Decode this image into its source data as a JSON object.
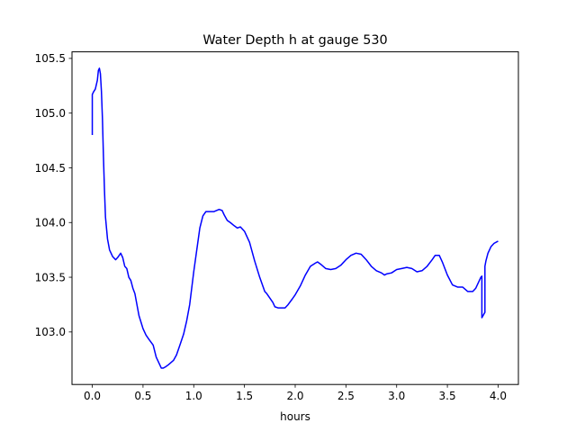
{
  "chart_data": {
    "type": "line",
    "title": "Water Depth h at gauge 530",
    "xlabel": "hours",
    "ylabel": "",
    "xlim": [
      -0.2,
      4.2
    ],
    "ylim": [
      102.52,
      105.56
    ],
    "xticks": [
      0.0,
      0.5,
      1.0,
      1.5,
      2.0,
      2.5,
      3.0,
      3.5,
      4.0
    ],
    "xtick_labels": [
      "0.0",
      "0.5",
      "1.0",
      "1.5",
      "2.0",
      "2.5",
      "3.0",
      "3.5",
      "4.0"
    ],
    "yticks": [
      103.0,
      103.5,
      104.0,
      104.5,
      105.0,
      105.5
    ],
    "ytick_labels": [
      "103.0",
      "103.5",
      "104.0",
      "104.5",
      "105.0",
      "105.5"
    ],
    "grid": false,
    "legend": "none",
    "series": [
      {
        "color": "#0000ff",
        "x": [
          0.0,
          0.0,
          0.01,
          0.03,
          0.05,
          0.06,
          0.07,
          0.08,
          0.09,
          0.1,
          0.11,
          0.12,
          0.13,
          0.15,
          0.17,
          0.2,
          0.23,
          0.25,
          0.28,
          0.3,
          0.32,
          0.34,
          0.36,
          0.38,
          0.4,
          0.42,
          0.44,
          0.46,
          0.48,
          0.5,
          0.53,
          0.56,
          0.6,
          0.63,
          0.66,
          0.68,
          0.7,
          0.72,
          0.75,
          0.8,
          0.83,
          0.86,
          0.9,
          0.93,
          0.96,
          1.0,
          1.03,
          1.06,
          1.09,
          1.12,
          1.15,
          1.2,
          1.25,
          1.28,
          1.3,
          1.33,
          1.36,
          1.4,
          1.43,
          1.46,
          1.5,
          1.55,
          1.6,
          1.65,
          1.7,
          1.72,
          1.75,
          1.78,
          1.8,
          1.83,
          1.86,
          1.9,
          1.93,
          1.97,
          2.0,
          2.05,
          2.1,
          2.15,
          2.2,
          2.22,
          2.25,
          2.3,
          2.35,
          2.4,
          2.45,
          2.5,
          2.55,
          2.6,
          2.65,
          2.7,
          2.75,
          2.8,
          2.85,
          2.88,
          2.9,
          2.95,
          3.0,
          3.05,
          3.1,
          3.15,
          3.2,
          3.25,
          3.3,
          3.35,
          3.38,
          3.42,
          3.45,
          3.5,
          3.55,
          3.6,
          3.65,
          3.7,
          3.75,
          3.78,
          3.8,
          3.83,
          3.84,
          3.84,
          3.87,
          3.87,
          3.88,
          3.9,
          3.93,
          3.96,
          4.0
        ],
        "y": [
          104.8,
          105.17,
          105.19,
          105.22,
          105.3,
          105.39,
          105.41,
          105.36,
          105.2,
          104.95,
          104.6,
          104.3,
          104.05,
          103.85,
          103.75,
          103.69,
          103.66,
          103.68,
          103.72,
          103.68,
          103.6,
          103.58,
          103.5,
          103.47,
          103.4,
          103.35,
          103.25,
          103.15,
          103.09,
          103.03,
          102.97,
          102.93,
          102.88,
          102.77,
          102.71,
          102.67,
          102.67,
          102.68,
          102.7,
          102.74,
          102.79,
          102.87,
          102.98,
          103.1,
          103.25,
          103.55,
          103.75,
          103.95,
          104.06,
          104.1,
          104.1,
          104.1,
          104.12,
          104.11,
          104.07,
          104.02,
          104.0,
          103.97,
          103.95,
          103.96,
          103.92,
          103.82,
          103.65,
          103.5,
          103.37,
          103.35,
          103.31,
          103.27,
          103.23,
          103.22,
          103.22,
          103.22,
          103.25,
          103.3,
          103.34,
          103.42,
          103.52,
          103.6,
          103.63,
          103.64,
          103.62,
          103.58,
          103.57,
          103.58,
          103.61,
          103.66,
          103.7,
          103.72,
          103.71,
          103.66,
          103.6,
          103.56,
          103.54,
          103.52,
          103.53,
          103.54,
          103.57,
          103.58,
          103.59,
          103.58,
          103.55,
          103.56,
          103.6,
          103.66,
          103.7,
          103.7,
          103.64,
          103.52,
          103.43,
          103.41,
          103.41,
          103.37,
          103.37,
          103.4,
          103.44,
          103.5,
          103.51,
          103.13,
          103.18,
          103.6,
          103.65,
          103.72,
          103.78,
          103.81,
          103.83
        ]
      }
    ]
  }
}
